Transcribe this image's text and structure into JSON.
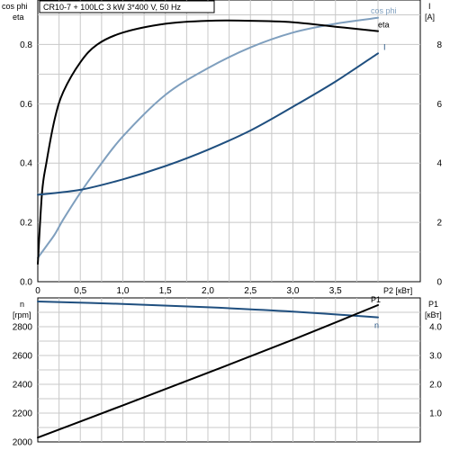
{
  "chart_data": [
    {
      "type": "line",
      "title": "CR10-7 + 100LC   3 kW   3*400 V, 50 Hz",
      "xlabel": "P2 [кВт]",
      "xlim": [
        0,
        4.2
      ],
      "xticks": [
        "0",
        "0,5",
        "1,0",
        "1,5",
        "2,0",
        "2,5",
        "3,0",
        "3,5"
      ],
      "xtick_values": [
        0,
        0.5,
        1.0,
        1.5,
        2.0,
        2.5,
        3.0,
        3.5
      ],
      "ylabel_left_1": "cos phi",
      "ylabel_left_2": "eta",
      "ylim_left": [
        0,
        0.95
      ],
      "yticks_left": [
        "0.0",
        "0.2",
        "0.4",
        "0.6",
        "0.8"
      ],
      "ytick_values_left": [
        0,
        0.2,
        0.4,
        0.6,
        0.8
      ],
      "ylabel_right_1": "I",
      "ylabel_right_2": "[A]",
      "ylim_right": [
        0,
        9.5
      ],
      "yticks_right": [
        "0",
        "2",
        "4",
        "6",
        "8"
      ],
      "ytick_values_right": [
        0,
        2,
        4,
        6,
        8
      ],
      "grid": true,
      "series": [
        {
          "name": "cos phi",
          "axis": "left",
          "color": "#7f9fbe",
          "x": [
            0,
            0.1,
            0.2,
            0.3,
            0.5,
            0.7,
            1.0,
            1.5,
            2.0,
            2.5,
            3.0,
            3.5,
            4.0
          ],
          "y": [
            0.08,
            0.12,
            0.16,
            0.21,
            0.3,
            0.38,
            0.49,
            0.63,
            0.72,
            0.79,
            0.84,
            0.87,
            0.89
          ]
        },
        {
          "name": "eta",
          "axis": "left",
          "color": "#000000",
          "x": [
            0,
            0.05,
            0.1,
            0.2,
            0.3,
            0.5,
            0.7,
            1.0,
            1.5,
            2.0,
            2.5,
            3.0,
            3.5,
            4.0
          ],
          "y": [
            0.06,
            0.3,
            0.4,
            0.55,
            0.64,
            0.74,
            0.8,
            0.84,
            0.87,
            0.88,
            0.88,
            0.875,
            0.86,
            0.845
          ]
        },
        {
          "name": "I",
          "axis": "right",
          "color": "#1f4f7f",
          "x": [
            0,
            0.5,
            1.0,
            1.5,
            2.0,
            2.5,
            3.0,
            3.5,
            4.0
          ],
          "y": [
            2.93,
            3.1,
            3.45,
            3.9,
            4.45,
            5.1,
            5.9,
            6.75,
            7.7
          ]
        }
      ]
    },
    {
      "type": "line",
      "xlim": [
        0,
        4.2
      ],
      "ylabel_left_1": "n",
      "ylabel_left_2": "[rpm]",
      "ylim_left": [
        2000,
        3000
      ],
      "yticks_left": [
        "2000",
        "2200",
        "2400",
        "2600",
        "2800"
      ],
      "ytick_values_left": [
        2000,
        2200,
        2400,
        2600,
        2800
      ],
      "ylabel_right_1": "P1",
      "ylabel_right_2": "[кВт]",
      "ylim_right": [
        0,
        5.0
      ],
      "yticks_right": [
        "1.0",
        "2.0",
        "3.0",
        "4.0"
      ],
      "ytick_values_right": [
        1.0,
        2.0,
        3.0,
        4.0
      ],
      "grid": true,
      "series": [
        {
          "name": "n",
          "axis": "left",
          "color": "#1f4f7f",
          "x": [
            0,
            1.0,
            2.0,
            3.0,
            4.0
          ],
          "y": [
            2975,
            2958,
            2935,
            2905,
            2865
          ]
        },
        {
          "name": "P1",
          "axis": "right",
          "color": "#000000",
          "x": [
            0,
            1.0,
            2.0,
            3.0,
            4.0
          ],
          "y": [
            0.15,
            1.27,
            2.4,
            3.55,
            4.75
          ]
        }
      ]
    }
  ]
}
